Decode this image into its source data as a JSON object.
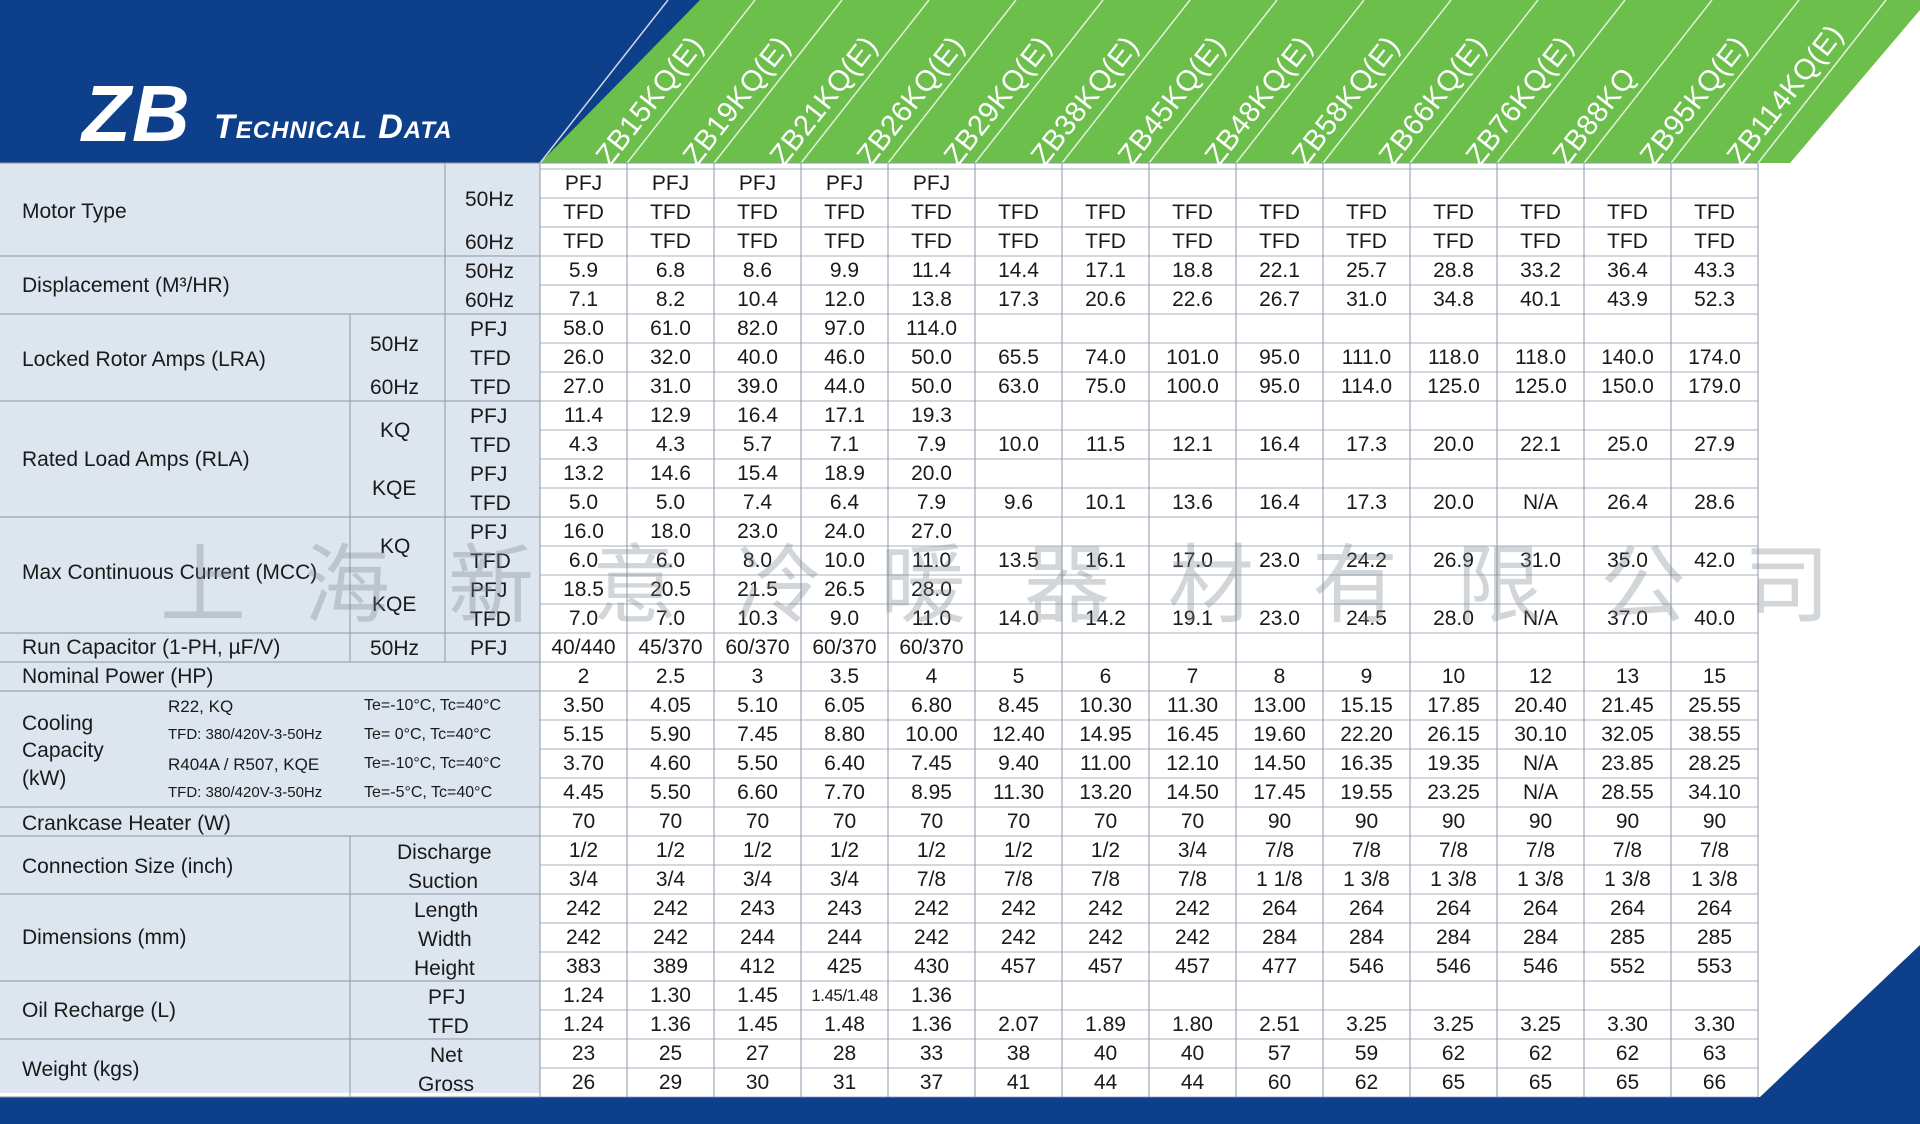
{
  "header": {
    "title_big": "ZB",
    "title_rest": "Technical Data",
    "colors": {
      "navy": "#0d3f8a",
      "green": "#6cbf4a",
      "label_bg": "#dde5ee",
      "line": "#8a97a8"
    }
  },
  "models": [
    "ZB15KQ(E)",
    "ZB19KQ(E)",
    "ZB21KQ(E)",
    "ZB26KQ(E)",
    "ZB29KQ(E)",
    "ZB38KQ(E)",
    "ZB45KQ(E)",
    "ZB48KQ(E)",
    "ZB58KQ(E)",
    "ZB66KQ(E)",
    "ZB76KQ(E)",
    "ZB88KQ",
    "ZB95KQ(E)",
    "ZB114KQ(E)"
  ],
  "watermark": "上海新意冷暖器材有限公司",
  "rows": [
    {
      "c1": "Motor Type",
      "c2": "",
      "c3": "50Hz",
      "vals": [
        "PFJ\nTFD",
        "PFJ\nTFD",
        "PFJ\nTFD",
        "PFJ\nTFD",
        "PFJ\nTFD",
        "TFD",
        "TFD",
        "TFD",
        "TFD",
        "TFD",
        "TFD",
        "TFD",
        "TFD",
        "TFD"
      ]
    }
  ],
  "labels": {
    "motor_type": "Motor Type",
    "displacement": "Displacement (M³/HR)",
    "lra": "Locked Rotor Amps (LRA)",
    "rla": "Rated Load Amps (RLA)",
    "mcc": "Max Continuous Current (MCC)",
    "run_cap": "Run Capacitor (1-PH, µF/V)",
    "nominal_power": "Nominal Power (HP)",
    "cooling": "Cooling\nCapacity\n(kW)",
    "cooling_r22": "R22, KQ",
    "cooling_tfd1": "TFD: 380/420V-3-50Hz",
    "cooling_r404": "R404A / R507, KQE",
    "cooling_tfd2": "TFD: 380/420V-3-50Hz",
    "cond_1": "Te=-10°C, Tc=40°C",
    "cond_2": "Te= 0°C,   Tc=40°C",
    "cond_3": "Te=-10°C, Tc=40°C",
    "cond_4": "Te=-5°C,   Tc=40°C",
    "crankcase": "Crankcase Heater (W)",
    "connection": "Connection Size (inch)",
    "discharge": "Discharge",
    "suction": "Suction",
    "dimensions": "Dimensions (mm)",
    "length": "Length",
    "width": "Width",
    "height": "Height",
    "oil": "Oil Recharge (L)",
    "weight": "Weight (kgs)",
    "net": "Net",
    "gross": "Gross",
    "hz50": "50Hz",
    "hz60": "60Hz",
    "pfj": "PFJ",
    "tfd": "TFD",
    "kq": "KQ",
    "kqe": "KQE"
  },
  "table": [
    [
      "PFJ",
      "PFJ",
      "PFJ",
      "PFJ",
      "PFJ",
      "",
      "",
      "",
      "",
      "",
      "",
      "",
      "",
      ""
    ],
    [
      "TFD",
      "TFD",
      "TFD",
      "TFD",
      "TFD",
      "TFD",
      "TFD",
      "TFD",
      "TFD",
      "TFD",
      "TFD",
      "TFD",
      "TFD",
      "TFD"
    ],
    [
      "TFD",
      "TFD",
      "TFD",
      "TFD",
      "TFD",
      "TFD",
      "TFD",
      "TFD",
      "TFD",
      "TFD",
      "TFD",
      "TFD",
      "TFD",
      "TFD"
    ],
    [
      "5.9",
      "6.8",
      "8.6",
      "9.9",
      "11.4",
      "14.4",
      "17.1",
      "18.8",
      "22.1",
      "25.7",
      "28.8",
      "33.2",
      "36.4",
      "43.3"
    ],
    [
      "7.1",
      "8.2",
      "10.4",
      "12.0",
      "13.8",
      "17.3",
      "20.6",
      "22.6",
      "26.7",
      "31.0",
      "34.8",
      "40.1",
      "43.9",
      "52.3"
    ],
    [
      "58.0",
      "61.0",
      "82.0",
      "97.0",
      "114.0",
      "",
      "",
      "",
      "",
      "",
      "",
      "",
      "",
      ""
    ],
    [
      "26.0",
      "32.0",
      "40.0",
      "46.0",
      "50.0",
      "65.5",
      "74.0",
      "101.0",
      "95.0",
      "111.0",
      "118.0",
      "118.0",
      "140.0",
      "174.0"
    ],
    [
      "27.0",
      "31.0",
      "39.0",
      "44.0",
      "50.0",
      "63.0",
      "75.0",
      "100.0",
      "95.0",
      "114.0",
      "125.0",
      "125.0",
      "150.0",
      "179.0"
    ],
    [
      "11.4",
      "12.9",
      "16.4",
      "17.1",
      "19.3",
      "",
      "",
      "",
      "",
      "",
      "",
      "",
      "",
      ""
    ],
    [
      "4.3",
      "4.3",
      "5.7",
      "7.1",
      "7.9",
      "10.0",
      "11.5",
      "12.1",
      "16.4",
      "17.3",
      "20.0",
      "22.1",
      "25.0",
      "27.9"
    ],
    [
      "13.2",
      "14.6",
      "15.4",
      "18.9",
      "20.0",
      "",
      "",
      "",
      "",
      "",
      "",
      "",
      "",
      ""
    ],
    [
      "5.0",
      "5.0",
      "7.4",
      "6.4",
      "7.9",
      "9.6",
      "10.1",
      "13.6",
      "16.4",
      "17.3",
      "20.0",
      "N/A",
      "26.4",
      "28.6"
    ],
    [
      "16.0",
      "18.0",
      "23.0",
      "24.0",
      "27.0",
      "",
      "",
      "",
      "",
      "",
      "",
      "",
      "",
      ""
    ],
    [
      "6.0",
      "6.0",
      "8.0",
      "10.0",
      "11.0",
      "13.5",
      "16.1",
      "17.0",
      "23.0",
      "24.2",
      "26.9",
      "31.0",
      "35.0",
      "42.0"
    ],
    [
      "18.5",
      "20.5",
      "21.5",
      "26.5",
      "28.0",
      "",
      "",
      "",
      "",
      "",
      "",
      "",
      "",
      ""
    ],
    [
      "7.0",
      "7.0",
      "10.3",
      "9.0",
      "11.0",
      "14.0",
      "14.2",
      "19.1",
      "23.0",
      "24.5",
      "28.0",
      "N/A",
      "37.0",
      "40.0"
    ],
    [
      "40/440",
      "45/370",
      "60/370",
      "60/370",
      "60/370",
      "",
      "",
      "",
      "",
      "",
      "",
      "",
      "",
      ""
    ],
    [
      "2",
      "2.5",
      "3",
      "3.5",
      "4",
      "5",
      "6",
      "7",
      "8",
      "9",
      "10",
      "12",
      "13",
      "15"
    ],
    [
      "3.50",
      "4.05",
      "5.10",
      "6.05",
      "6.80",
      "8.45",
      "10.30",
      "11.30",
      "13.00",
      "15.15",
      "17.85",
      "20.40",
      "21.45",
      "25.55"
    ],
    [
      "5.15",
      "5.90",
      "7.45",
      "8.80",
      "10.00",
      "12.40",
      "14.95",
      "16.45",
      "19.60",
      "22.20",
      "26.15",
      "30.10",
      "32.05",
      "38.55"
    ],
    [
      "3.70",
      "4.60",
      "5.50",
      "6.40",
      "7.45",
      "9.40",
      "11.00",
      "12.10",
      "14.50",
      "16.35",
      "19.35",
      "N/A",
      "23.85",
      "28.25"
    ],
    [
      "4.45",
      "5.50",
      "6.60",
      "7.70",
      "8.95",
      "11.30",
      "13.20",
      "14.50",
      "17.45",
      "19.55",
      "23.25",
      "N/A",
      "28.55",
      "34.10"
    ],
    [
      "70",
      "70",
      "70",
      "70",
      "70",
      "70",
      "70",
      "70",
      "90",
      "90",
      "90",
      "90",
      "90",
      "90"
    ],
    [
      "1/2",
      "1/2",
      "1/2",
      "1/2",
      "1/2",
      "1/2",
      "1/2",
      "3/4",
      "7/8",
      "7/8",
      "7/8",
      "7/8",
      "7/8",
      "7/8"
    ],
    [
      "3/4",
      "3/4",
      "3/4",
      "3/4",
      "7/8",
      "7/8",
      "7/8",
      "7/8",
      "1 1/8",
      "1 3/8",
      "1 3/8",
      "1 3/8",
      "1 3/8",
      "1 3/8"
    ],
    [
      "242",
      "242",
      "243",
      "243",
      "242",
      "242",
      "242",
      "242",
      "264",
      "264",
      "264",
      "264",
      "264",
      "264"
    ],
    [
      "242",
      "242",
      "244",
      "244",
      "242",
      "242",
      "242",
      "242",
      "284",
      "284",
      "284",
      "284",
      "285",
      "285"
    ],
    [
      "383",
      "389",
      "412",
      "425",
      "430",
      "457",
      "457",
      "457",
      "477",
      "546",
      "546",
      "546",
      "552",
      "553"
    ],
    [
      "1.24",
      "1.30",
      "1.45",
      "1.45/1.48",
      "1.36",
      "",
      "",
      "",
      "",
      "",
      "",
      "",
      "",
      ""
    ],
    [
      "1.24",
      "1.36",
      "1.45",
      "1.48",
      "1.36",
      "2.07",
      "1.89",
      "1.80",
      "2.51",
      "3.25",
      "3.25",
      "3.25",
      "3.30",
      "3.30"
    ],
    [
      "23",
      "25",
      "27",
      "28",
      "33",
      "38",
      "40",
      "40",
      "57",
      "59",
      "62",
      "62",
      "62",
      "63"
    ],
    [
      "26",
      "29",
      "30",
      "31",
      "37",
      "41",
      "44",
      "44",
      "60",
      "62",
      "65",
      "65",
      "65",
      "66"
    ]
  ]
}
